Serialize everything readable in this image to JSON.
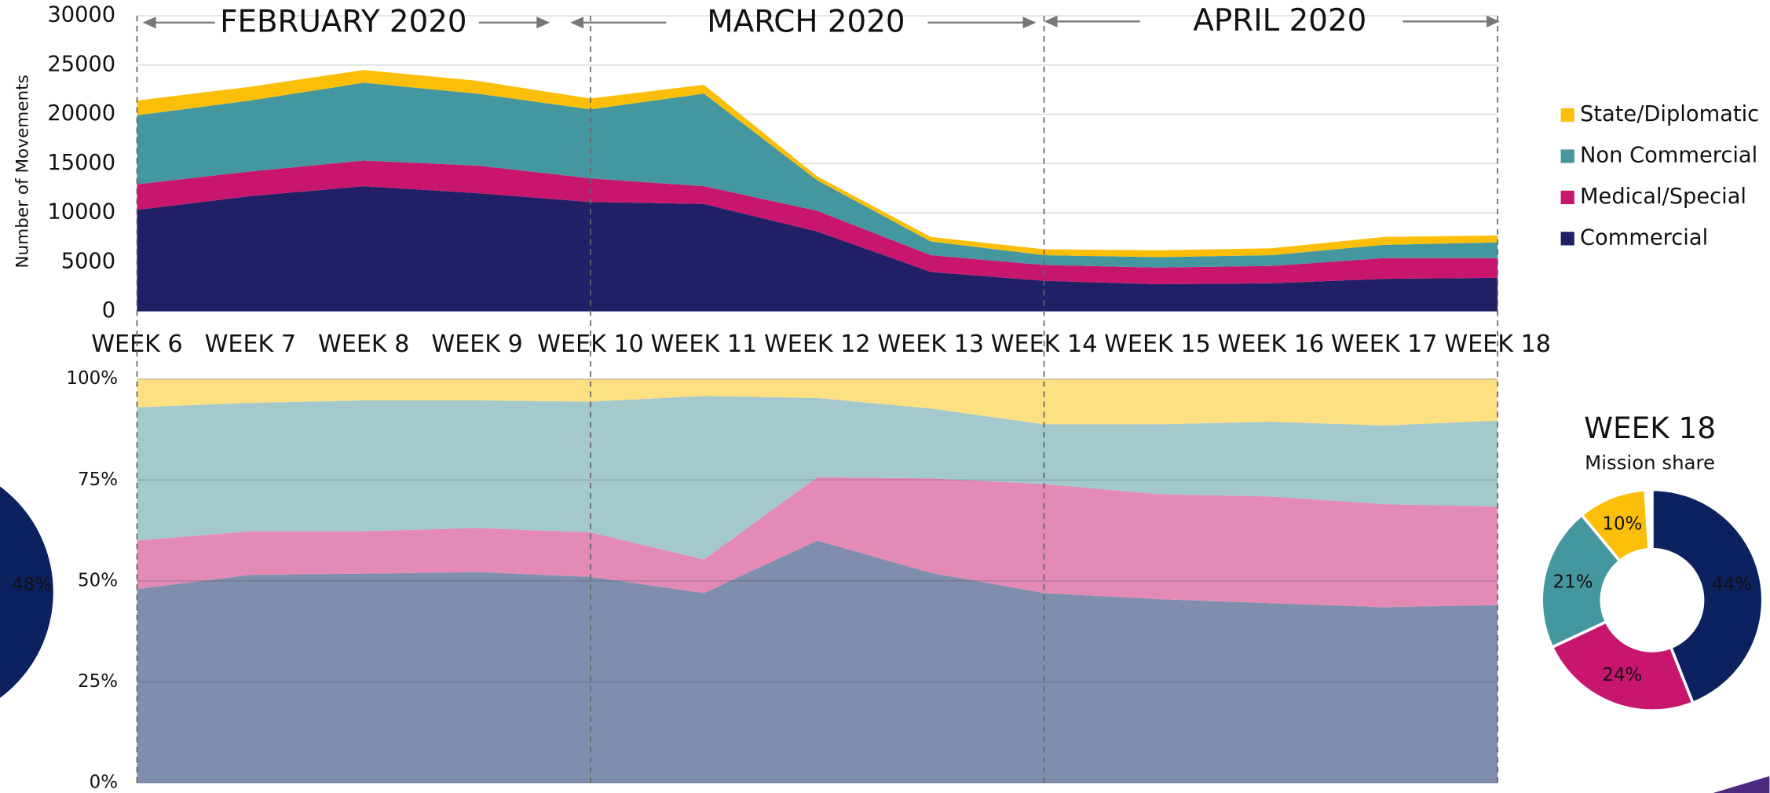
{
  "chart_data": [
    {
      "type": "area",
      "stacked": true,
      "y_label": "Number of Movements",
      "annotations": [
        "FEBRUARY 2020",
        "MARCH 2020",
        "APRIL 2020"
      ],
      "categories": [
        "WEEK 6",
        "WEEK 7",
        "WEEK 8",
        "WEEK 9",
        "WEEK 10",
        "WEEK 11",
        "WEEK 12",
        "WEEK 13",
        "WEEK 14",
        "WEEK 15",
        "WEEK 16",
        "WEEK 17",
        "WEEK 18"
      ],
      "series": [
        {
          "name": "Commercial",
          "color": "#212066",
          "values": [
            10300,
            11700,
            12700,
            12000,
            11100,
            10900,
            8100,
            4000,
            3100,
            2750,
            2850,
            3300,
            3400
          ]
        },
        {
          "name": "Medical/Special",
          "color": "#c8166f",
          "values": [
            2600,
            2500,
            2600,
            2800,
            2400,
            1800,
            2100,
            1700,
            1600,
            1700,
            1750,
            2100,
            2000
          ]
        },
        {
          "name": "Non Commercial",
          "color": "#45979f",
          "values": [
            7000,
            7200,
            7900,
            7300,
            7000,
            9400,
            3100,
            1400,
            1000,
            1050,
            1100,
            1350,
            1600
          ]
        },
        {
          "name": "State/Diplomatic",
          "color": "#fbbf0a",
          "values": [
            1500,
            1400,
            1300,
            1300,
            1100,
            900,
            400,
            450,
            600,
            700,
            700,
            800,
            700
          ]
        }
      ],
      "ylim": [
        0,
        30000
      ],
      "yticks": [
        0,
        5000,
        10000,
        15000,
        20000,
        25000,
        30000
      ],
      "grid": true,
      "legend": "right"
    },
    {
      "type": "area",
      "stacked": true,
      "series": [
        {
          "color": "#808ead",
          "values": [
            48,
            51.5,
            51.8,
            52.2,
            51,
            47,
            60,
            52,
            47,
            45.5,
            44.5,
            43.5,
            44
          ]
        },
        {
          "color": "#e38ab5",
          "values": [
            12,
            10.8,
            10.5,
            10.9,
            11,
            8.3,
            15.7,
            23.4,
            27,
            26,
            26.4,
            25.5,
            24.4
          ]
        },
        {
          "color": "#a3c9cd",
          "values": [
            33,
            31.8,
            32.4,
            31.6,
            32.4,
            40.5,
            19.6,
            17.3,
            14.8,
            17.3,
            18.5,
            19.5,
            21.3
          ]
        },
        {
          "color": "#fde082",
          "values": [
            7,
            5.9,
            5.3,
            5.3,
            5.6,
            4.2,
            4.7,
            7.3,
            11.2,
            11.2,
            10.6,
            11.5,
            10.3
          ]
        }
      ],
      "ylim": [
        0,
        100
      ],
      "yticks": [
        {
          "value": 0,
          "label": "0%"
        },
        {
          "value": 25,
          "label": "25%"
        },
        {
          "value": 50,
          "label": "50%"
        },
        {
          "value": 75,
          "label": "75%"
        },
        {
          "value": 100,
          "label": "100%"
        }
      ],
      "grid": true
    },
    {
      "type": "pie",
      "title": "WEEK 18",
      "subtitle": "Mission share",
      "values": [
        44,
        24,
        21,
        10
      ],
      "value_labels": [
        "44%",
        "24%",
        "21%",
        "10%"
      ],
      "colors": [
        "#0c2160",
        "#c8166f",
        "#45979f",
        "#fbbf0a"
      ]
    },
    {
      "type": "pie",
      "values": [
        48
      ],
      "value_labels": [
        "48%"
      ],
      "colors": [
        "#0c2160"
      ]
    }
  ]
}
